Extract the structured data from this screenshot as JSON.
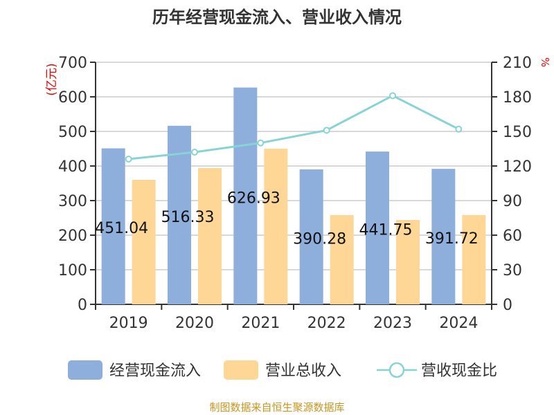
{
  "chart_data": {
    "type": "bar",
    "title": "历年经营现金流入、营业收入情况",
    "categories": [
      "2019",
      "2020",
      "2021",
      "2022",
      "2023",
      "2024"
    ],
    "series": [
      {
        "name": "经营现金流入",
        "type": "bar",
        "axis": "left",
        "color": "#8eaedb",
        "values": [
          451.04,
          516.33,
          626.93,
          390.28,
          441.75,
          391.72
        ],
        "labels": [
          "451.04",
          "516.33",
          "626.93",
          "390.28",
          "441.75",
          "391.72"
        ]
      },
      {
        "name": "营业总收入",
        "type": "bar",
        "axis": "left",
        "color": "#fed797",
        "values": [
          360,
          394,
          450,
          258,
          244,
          258
        ]
      },
      {
        "name": "营收现金比",
        "type": "line",
        "axis": "right",
        "color": "#87d3d6",
        "values": [
          126,
          132,
          140,
          151,
          181,
          152
        ]
      }
    ],
    "yleft": {
      "label": "(亿元)",
      "ylim": [
        0,
        700
      ],
      "ticks": [
        0,
        100,
        200,
        300,
        400,
        500,
        600,
        700
      ]
    },
    "yright": {
      "label": "%",
      "ylim": [
        0,
        210
      ],
      "ticks": [
        0,
        30,
        60,
        90,
        120,
        150,
        180,
        210
      ]
    },
    "grid": true,
    "legend": "bottom"
  },
  "watermark": "制图数据来自恒生聚源数据库"
}
